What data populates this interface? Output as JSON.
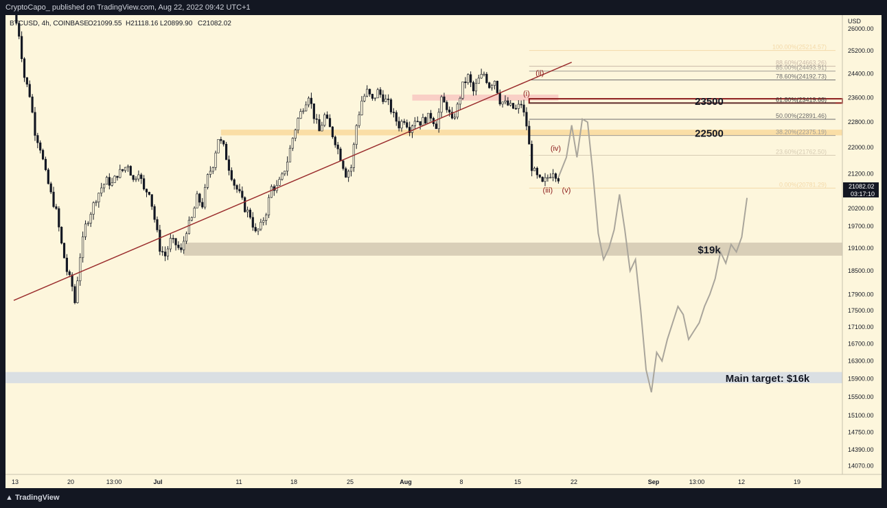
{
  "header": {
    "publish_line": "CryptoCapo_ published on TradingView.com, Aug 22, 2022 09:42 UTC+1"
  },
  "footer": {
    "logo_text": "TradingView",
    "logo_icon": "tradingview-logo-icon"
  },
  "symbol_line": {
    "symbol": "BTCUSD, 4h, COINBASE",
    "open": "O21099.55",
    "high": "H21118.16",
    "low": "L20899.90",
    "close": "C21082.02"
  },
  "price_axis": {
    "currency": "USD",
    "current_price": "21082.02",
    "countdown": "03:17:10"
  },
  "chart_data": {
    "type": "candlestick",
    "symbol": "BTCUSD",
    "interval": "4h",
    "exchange": "COINBASE",
    "y_scale": "log",
    "ylim": [
      13900,
      26500
    ],
    "y_ticks": [
      "26000.00",
      "25200.00",
      "24400.00",
      "23600.00",
      "22800.00",
      "22000.00",
      "21200.00",
      "20700.00",
      "20200.00",
      "19700.00",
      "19100.00",
      "18500.00",
      "17900.00",
      "17500.00",
      "17100.00",
      "16700.00",
      "16300.00",
      "15900.00",
      "15500.00",
      "15100.00",
      "14750.00",
      "14390.00",
      "14070.00"
    ],
    "x_ticks": [
      "13",
      "20",
      "13:00",
      "Jul",
      "11",
      "18",
      "25",
      "Aug",
      "8",
      "15",
      "22",
      "Sep",
      "13:00",
      "12",
      "19"
    ],
    "x_ticks_bold": [
      "Jul",
      "Aug",
      "Sep"
    ],
    "price_path": [
      [
        0,
        26600
      ],
      [
        2,
        25800
      ],
      [
        4,
        24300
      ],
      [
        6,
        23700
      ],
      [
        8,
        22500
      ],
      [
        10,
        22000
      ],
      [
        12,
        21200
      ],
      [
        14,
        20600
      ],
      [
        16,
        20100
      ],
      [
        18,
        19200
      ],
      [
        20,
        18500
      ],
      [
        22,
        18100
      ],
      [
        23,
        17700
      ],
      [
        25,
        18900
      ],
      [
        27,
        19700
      ],
      [
        29,
        20100
      ],
      [
        31,
        20500
      ],
      [
        33,
        20800
      ],
      [
        35,
        21000
      ],
      [
        37,
        20900
      ],
      [
        39,
        21200
      ],
      [
        41,
        21300
      ],
      [
        43,
        21500
      ],
      [
        45,
        21000
      ],
      [
        47,
        21300
      ],
      [
        49,
        20700
      ],
      [
        51,
        20700
      ],
      [
        53,
        19900
      ],
      [
        55,
        19100
      ],
      [
        57,
        18900
      ],
      [
        59,
        19300
      ],
      [
        61,
        19200
      ],
      [
        63,
        19000
      ],
      [
        65,
        19600
      ],
      [
        67,
        19900
      ],
      [
        69,
        20500
      ],
      [
        71,
        20300
      ],
      [
        73,
        21100
      ],
      [
        75,
        21500
      ],
      [
        77,
        22300
      ],
      [
        79,
        22000
      ],
      [
        81,
        21400
      ],
      [
        83,
        20900
      ],
      [
        85,
        20600
      ],
      [
        87,
        20200
      ],
      [
        89,
        20000
      ],
      [
        91,
        19500
      ],
      [
        93,
        19700
      ],
      [
        95,
        20100
      ],
      [
        97,
        20800
      ],
      [
        99,
        20800
      ],
      [
        101,
        21100
      ],
      [
        103,
        21600
      ],
      [
        105,
        22300
      ],
      [
        107,
        22900
      ],
      [
        109,
        23300
      ],
      [
        111,
        23700
      ],
      [
        113,
        23000
      ],
      [
        115,
        22500
      ],
      [
        117,
        23000
      ],
      [
        119,
        22600
      ],
      [
        121,
        22200
      ],
      [
        123,
        21700
      ],
      [
        125,
        21200
      ],
      [
        127,
        21400
      ],
      [
        129,
        22700
      ],
      [
        131,
        23500
      ],
      [
        133,
        23800
      ],
      [
        135,
        23500
      ],
      [
        137,
        23800
      ],
      [
        139,
        23600
      ],
      [
        141,
        23400
      ],
      [
        143,
        23000
      ],
      [
        145,
        22700
      ],
      [
        147,
        22900
      ],
      [
        149,
        22600
      ],
      [
        151,
        22900
      ],
      [
        153,
        22800
      ],
      [
        155,
        22900
      ],
      [
        157,
        23000
      ],
      [
        159,
        22700
      ],
      [
        161,
        23500
      ],
      [
        163,
        23300
      ],
      [
        165,
        22800
      ],
      [
        167,
        23300
      ],
      [
        169,
        24000
      ],
      [
        171,
        24300
      ],
      [
        173,
        23800
      ],
      [
        175,
        24200
      ],
      [
        177,
        24400
      ],
      [
        179,
        24000
      ],
      [
        181,
        24200
      ],
      [
        183,
        23500
      ],
      [
        185,
        23400
      ],
      [
        187,
        23300
      ],
      [
        189,
        23200
      ],
      [
        191,
        23400
      ],
      [
        193,
        22700
      ],
      [
        195,
        21400
      ],
      [
        197,
        21100
      ],
      [
        199,
        20900
      ],
      [
        201,
        21100
      ],
      [
        203,
        21300
      ],
      [
        205,
        21082
      ]
    ],
    "projection_path": [
      [
        205,
        21100
      ],
      [
        208,
        21700
      ],
      [
        210,
        22700
      ],
      [
        212,
        21700
      ],
      [
        214,
        22900
      ],
      [
        216,
        22800
      ],
      [
        218,
        21200
      ],
      [
        220,
        19500
      ],
      [
        222,
        18800
      ],
      [
        224,
        19100
      ],
      [
        226,
        19600
      ],
      [
        228,
        20600
      ],
      [
        230,
        19600
      ],
      [
        232,
        18500
      ],
      [
        234,
        18800
      ],
      [
        236,
        17500
      ],
      [
        238,
        16100
      ],
      [
        240,
        15600
      ],
      [
        242,
        16500
      ],
      [
        244,
        16300
      ],
      [
        246,
        16800
      ],
      [
        248,
        17200
      ],
      [
        250,
        17600
      ],
      [
        252,
        17400
      ],
      [
        254,
        16800
      ],
      [
        256,
        17000
      ],
      [
        258,
        17200
      ],
      [
        260,
        17600
      ],
      [
        262,
        17900
      ],
      [
        264,
        18300
      ],
      [
        266,
        19000
      ],
      [
        268,
        18700
      ],
      [
        270,
        19200
      ],
      [
        272,
        19000
      ],
      [
        274,
        19400
      ],
      [
        276,
        20500
      ]
    ],
    "fib_levels": [
      {
        "label": "100.00%(25214.57)",
        "value": 25214.57,
        "color": "#f3d9a8"
      },
      {
        "label": "88.60%(24663.26)",
        "value": 24663.26,
        "color": "#c9b8a8"
      },
      {
        "label": "85.00%(24493.91)",
        "value": 24493.91,
        "color": "#9e9a92"
      },
      {
        "label": "78.60%(24192.73)",
        "value": 24192.73,
        "color": "#6b6b6b"
      },
      {
        "label": "61.80%(23419.68)",
        "value": 23419.68,
        "color": "#3a3a3a"
      },
      {
        "label": "50.00%(22891.46)",
        "value": 22891.46,
        "color": "#6b6b6b"
      },
      {
        "label": "38.20%(22375.19)",
        "value": 22375.19,
        "color": "#9e9a92"
      },
      {
        "label": "23.60%(21762.50)",
        "value": 21762.5,
        "color": "#d6cbb3"
      },
      {
        "label": "0.00%(20781.29)",
        "value": 20781.29,
        "color": "#f3d9a8"
      }
    ],
    "zones": [
      {
        "label": "23500",
        "from": 23420,
        "to": 23560,
        "color": "#8b1a1a"
      },
      {
        "label": "22500",
        "from": 22380,
        "to": 22560,
        "color": "#f9dca0"
      },
      {
        "label": "$19k",
        "from": 18900,
        "to": 19250,
        "color": "#d5cbb4"
      },
      {
        "label": "Main target: $16k",
        "from": 15800,
        "to": 16050,
        "color": "#d6dde3"
      }
    ],
    "resistance_zone_upper": {
      "from": 23500,
      "to": 23700,
      "color": "#f7c6c0"
    },
    "trendline": {
      "from": [
        0,
        17750
      ],
      "to": [
        210,
        24800
      ],
      "color": "#9b2e2e"
    },
    "wave_labels": [
      "(i)",
      "(ii)",
      "(iii)",
      "(iv)",
      "(v)"
    ]
  }
}
